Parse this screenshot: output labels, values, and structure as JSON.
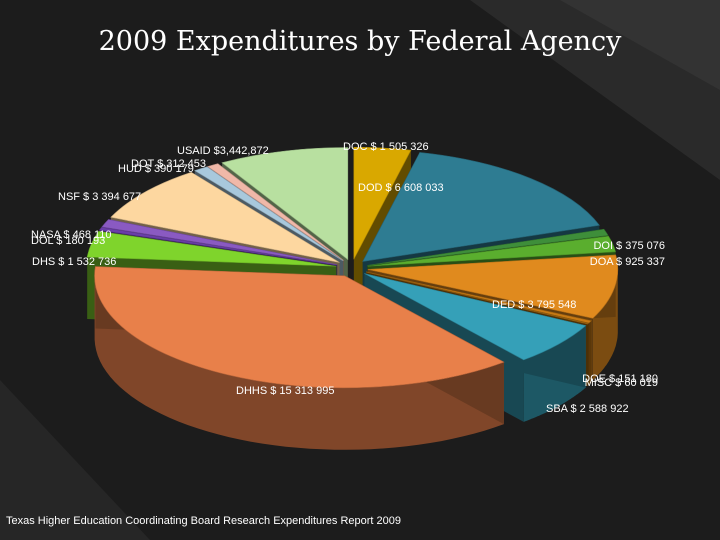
{
  "chart_data": {
    "type": "pie",
    "title": "2009 Expenditures by Federal Agency",
    "series": [
      {
        "label": "DOC $ 1 505 326",
        "value": 1505326,
        "color": "#d9a800"
      },
      {
        "label": "DOD $ 6 608 033",
        "value": 6608033,
        "color": "#2e7c92"
      },
      {
        "label": "DOI $ 375 076",
        "value": 375076,
        "color": "#3e8e3a"
      },
      {
        "label": "DOA $ 925 337",
        "value": 925337,
        "color": "#5aae2e"
      },
      {
        "label": "DED $ 3 795 548",
        "value": 3795548,
        "color": "#e08a1e"
      },
      {
        "label": "DOE $ 151 180",
        "value": 151180,
        "color": "#c87a14"
      },
      {
        "label": "MISC $ 60 019",
        "value": 60019,
        "color": "#a86a10"
      },
      {
        "label": "SBA $ 2 588 922",
        "value": 2588922,
        "color": "#35a0b8"
      },
      {
        "label": "DHHS $ 15 313 995",
        "value": 15313995,
        "color": "#e8804a"
      },
      {
        "label": "DHS $ 1 532 736",
        "value": 1532736,
        "color": "#7fd42c"
      },
      {
        "label": "DOL $ 180 193",
        "value": 180193,
        "color": "#6a3ea8"
      },
      {
        "label": "NASA $ 468 110",
        "value": 468110,
        "color": "#8a5ac2"
      },
      {
        "label": "NSF $ 3 394 677",
        "value": 3394677,
        "color": "#fdd7a0"
      },
      {
        "label": "HUD $ 390 179",
        "value": 390179,
        "color": "#a8c8dc"
      },
      {
        "label": "DOT $ 312 453",
        "value": 312453,
        "color": "#f0b8a8"
      },
      {
        "label": "USAID  $3,442,872",
        "value": 3442872,
        "color": "#b8e0a0"
      }
    ]
  },
  "footer": {
    "source": "Texas Higher Education Coordinating Board Research Expenditures Report 2009"
  }
}
